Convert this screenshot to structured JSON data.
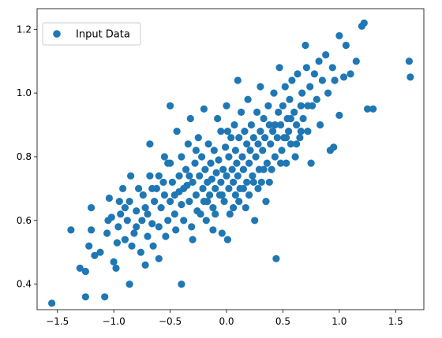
{
  "chart_data": {
    "type": "scatter",
    "title": "",
    "xlabel": "",
    "ylabel": "",
    "xlim": [
      -1.68,
      1.75
    ],
    "ylim": [
      0.32,
      1.265
    ],
    "xticks": [
      -1.5,
      -1.0,
      -0.5,
      0.0,
      0.5,
      1.0,
      1.5
    ],
    "xtick_labels": [
      "−1.5",
      "−1.0",
      "−0.5",
      "0.0",
      "0.5",
      "1.0",
      "1.5"
    ],
    "yticks": [
      0.4,
      0.6,
      0.8,
      1.0,
      1.2
    ],
    "ytick_labels": [
      "0.4",
      "0.6",
      "0.8",
      "1.0",
      "1.2"
    ],
    "grid": false,
    "legend": {
      "placement": "top-left",
      "entries": [
        "Input Data"
      ]
    },
    "series": [
      {
        "name": "Input Data",
        "color": "#1f77b4",
        "points": [
          [
            -1.55,
            0.34
          ],
          [
            -1.38,
            0.57
          ],
          [
            -1.3,
            0.45
          ],
          [
            -1.25,
            0.44
          ],
          [
            -1.25,
            0.36
          ],
          [
            -1.22,
            0.52
          ],
          [
            -1.2,
            0.57
          ],
          [
            -1.2,
            0.64
          ],
          [
            -1.17,
            0.49
          ],
          [
            -1.12,
            0.5
          ],
          [
            -1.08,
            0.36
          ],
          [
            -1.06,
            0.56
          ],
          [
            -1.05,
            0.6
          ],
          [
            -1.04,
            0.67
          ],
          [
            -1.02,
            0.61
          ],
          [
            -1.0,
            0.47
          ],
          [
            -0.98,
            0.45
          ],
          [
            -0.97,
            0.53
          ],
          [
            -0.96,
            0.58
          ],
          [
            -0.95,
            0.66
          ],
          [
            -0.94,
            0.62
          ],
          [
            -0.92,
            0.7
          ],
          [
            -0.9,
            0.54
          ],
          [
            -0.88,
            0.6
          ],
          [
            -0.86,
            0.4
          ],
          [
            -0.86,
            0.66
          ],
          [
            -0.85,
            0.74
          ],
          [
            -0.84,
            0.52
          ],
          [
            -0.82,
            0.56
          ],
          [
            -0.8,
            0.63
          ],
          [
            -0.78,
            0.7
          ],
          [
            -0.76,
            0.5
          ],
          [
            -0.75,
            0.6
          ],
          [
            -0.74,
            0.68
          ],
          [
            -0.72,
            0.46
          ],
          [
            -0.7,
            0.55
          ],
          [
            -0.7,
            0.62
          ],
          [
            -0.68,
            0.74
          ],
          [
            -0.68,
            0.84
          ],
          [
            -0.66,
            0.59
          ],
          [
            -0.65,
            0.52
          ],
          [
            -0.64,
            0.66
          ],
          [
            -0.62,
            0.7
          ],
          [
            -0.6,
            0.48
          ],
          [
            -0.6,
            0.58
          ],
          [
            -0.58,
            0.64
          ],
          [
            -0.56,
            0.72
          ],
          [
            -0.55,
            0.8
          ],
          [
            -0.55,
            0.68
          ],
          [
            -0.54,
            0.55
          ],
          [
            -0.52,
            0.6
          ],
          [
            -0.5,
            0.96
          ],
          [
            -0.5,
            0.78
          ],
          [
            -0.5,
            0.66
          ],
          [
            -0.48,
            0.72
          ],
          [
            -0.46,
            0.62
          ],
          [
            -0.45,
            0.57
          ],
          [
            -0.44,
            0.88
          ],
          [
            -0.42,
            0.74
          ],
          [
            -0.42,
            0.69
          ],
          [
            -0.4,
            0.4
          ],
          [
            -0.4,
            0.8
          ],
          [
            -0.4,
            0.65
          ],
          [
            -0.38,
            0.6
          ],
          [
            -0.36,
            0.76
          ],
          [
            -0.35,
            0.71
          ],
          [
            -0.34,
            0.84
          ],
          [
            -0.33,
            0.66
          ],
          [
            -0.32,
            0.92
          ],
          [
            -0.31,
            0.58
          ],
          [
            -0.3,
            0.54
          ],
          [
            -0.3,
            0.72
          ],
          [
            -0.28,
            0.78
          ],
          [
            -0.27,
            0.68
          ],
          [
            -0.26,
            0.63
          ],
          [
            -0.25,
            0.86
          ],
          [
            -0.24,
            0.74
          ],
          [
            -0.22,
            0.8
          ],
          [
            -0.21,
            0.7
          ],
          [
            -0.2,
            0.66
          ],
          [
            -0.2,
            0.95
          ],
          [
            -0.19,
            0.76
          ],
          [
            -0.18,
            0.6
          ],
          [
            -0.17,
            0.72
          ],
          [
            -0.16,
            0.84
          ],
          [
            -0.15,
            0.68
          ],
          [
            -0.14,
            0.78
          ],
          [
            -0.13,
            0.73
          ],
          [
            -0.12,
            0.57
          ],
          [
            -0.12,
            0.64
          ],
          [
            -0.11,
            0.82
          ],
          [
            -0.1,
            0.7
          ],
          [
            -0.09,
            0.75
          ],
          [
            -0.08,
            0.92
          ],
          [
            -0.07,
            0.79
          ],
          [
            -0.06,
            0.68
          ],
          [
            -0.05,
            0.72
          ],
          [
            -0.05,
            0.88
          ],
          [
            -0.04,
            0.56
          ],
          [
            -0.03,
            0.76
          ],
          [
            -0.02,
            0.66
          ],
          [
            -0.01,
            0.83
          ],
          [
            0.0,
            0.74
          ],
          [
            0.0,
            0.96
          ],
          [
            0.01,
            0.54
          ],
          [
            0.02,
            0.7
          ],
          [
            0.02,
            0.8
          ],
          [
            0.03,
            0.62
          ],
          [
            0.04,
            0.86
          ],
          [
            0.05,
            0.76
          ],
          [
            0.06,
            0.72
          ],
          [
            0.07,
            0.9
          ],
          [
            0.08,
            0.68
          ],
          [
            0.08,
            0.82
          ],
          [
            0.09,
            0.78
          ],
          [
            0.1,
            0.74
          ],
          [
            0.1,
            1.04
          ],
          [
            0.11,
            0.86
          ],
          [
            0.12,
            0.7
          ],
          [
            0.13,
            0.94
          ],
          [
            0.14,
            0.8
          ],
          [
            0.15,
            0.76
          ],
          [
            0.16,
            0.88
          ],
          [
            0.17,
            0.64
          ],
          [
            0.18,
            0.72
          ],
          [
            0.18,
            0.84
          ],
          [
            0.19,
            0.98
          ],
          [
            0.2,
            0.78
          ],
          [
            0.21,
            0.82
          ],
          [
            0.22,
            0.9
          ],
          [
            0.23,
            0.74
          ],
          [
            0.24,
            0.86
          ],
          [
            0.25,
            0.6
          ],
          [
            0.26,
            0.8
          ],
          [
            0.27,
            0.94
          ],
          [
            0.28,
            0.84
          ],
          [
            0.29,
            0.76
          ],
          [
            0.3,
            0.88
          ],
          [
            0.3,
            1.02
          ],
          [
            0.31,
            0.72
          ],
          [
            0.32,
            0.82
          ],
          [
            0.33,
            0.92
          ],
          [
            0.34,
            0.86
          ],
          [
            0.35,
            0.66
          ],
          [
            0.36,
            0.78
          ],
          [
            0.37,
            0.96
          ],
          [
            0.38,
            0.9
          ],
          [
            0.39,
            0.84
          ],
          [
            0.4,
            0.76
          ],
          [
            0.41,
            0.88
          ],
          [
            0.42,
            1.0
          ],
          [
            0.43,
            0.8
          ],
          [
            0.44,
            0.48
          ],
          [
            0.45,
            0.86
          ],
          [
            0.46,
            0.94
          ],
          [
            0.47,
            1.08
          ],
          [
            0.48,
            0.9
          ],
          [
            0.49,
            0.82
          ],
          [
            0.5,
            0.96
          ],
          [
            0.51,
            0.86
          ],
          [
            0.52,
            1.02
          ],
          [
            0.53,
            0.78
          ],
          [
            0.54,
            0.92
          ],
          [
            0.55,
            0.88
          ],
          [
            0.56,
            0.98
          ],
          [
            0.57,
            0.84
          ],
          [
            0.58,
            1.04
          ],
          [
            0.6,
            0.94
          ],
          [
            0.61,
            0.8
          ],
          [
            0.62,
            0.9
          ],
          [
            0.63,
            1.06
          ],
          [
            0.65,
            0.86
          ],
          [
            0.66,
            0.96
          ],
          [
            0.67,
            1.0
          ],
          [
            0.68,
            0.92
          ],
          [
            0.7,
            1.15
          ],
          [
            0.71,
            1.08
          ],
          [
            0.72,
            0.88
          ],
          [
            0.74,
            1.02
          ],
          [
            0.75,
            0.78
          ],
          [
            0.76,
            0.96
          ],
          [
            0.78,
            1.06
          ],
          [
            0.8,
            0.98
          ],
          [
            0.82,
            1.1
          ],
          [
            0.83,
            0.9
          ],
          [
            0.85,
            1.04
          ],
          [
            0.88,
            1.12
          ],
          [
            0.9,
            1.0
          ],
          [
            0.92,
            0.82
          ],
          [
            0.94,
            1.08
          ],
          [
            0.95,
            0.83
          ],
          [
            0.96,
            1.04
          ],
          [
            1.0,
            1.18
          ],
          [
            1.0,
            0.93
          ],
          [
            1.04,
            1.05
          ],
          [
            1.06,
            1.15
          ],
          [
            1.1,
            1.06
          ],
          [
            1.15,
            1.1
          ],
          [
            1.2,
            1.21
          ],
          [
            1.22,
            1.22
          ],
          [
            1.25,
            0.95
          ],
          [
            1.3,
            0.95
          ],
          [
            1.62,
            1.1
          ],
          [
            1.63,
            1.05
          ],
          [
            -0.9,
            0.64
          ],
          [
            -0.8,
            0.58
          ],
          [
            -0.72,
            0.64
          ],
          [
            -0.66,
            0.7
          ],
          [
            -0.6,
            0.74
          ],
          [
            -0.52,
            0.78
          ],
          [
            -0.46,
            0.68
          ],
          [
            -0.38,
            0.7
          ],
          [
            -0.33,
            0.74
          ],
          [
            -0.27,
            0.82
          ],
          [
            -0.23,
            0.62
          ],
          [
            -0.17,
            0.66
          ],
          [
            -0.1,
            0.62
          ],
          [
            -0.04,
            0.68
          ],
          [
            0.01,
            0.88
          ],
          [
            0.06,
            0.64
          ],
          [
            0.11,
            0.66
          ],
          [
            0.15,
            0.7
          ],
          [
            0.2,
            0.68
          ],
          [
            0.24,
            0.72
          ],
          [
            0.28,
            0.7
          ],
          [
            0.33,
            0.76
          ],
          [
            0.38,
            0.72
          ],
          [
            0.43,
            0.9
          ],
          [
            0.48,
            0.78
          ],
          [
            0.53,
            0.86
          ],
          [
            0.57,
            0.92
          ],
          [
            0.62,
            0.84
          ],
          [
            0.66,
            0.88
          ],
          [
            0.72,
            0.96
          ]
        ]
      }
    ]
  }
}
